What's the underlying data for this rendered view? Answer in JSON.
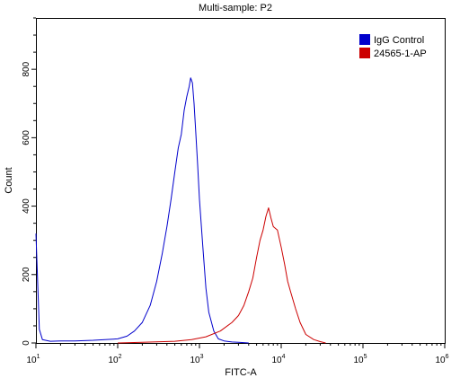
{
  "chart_data": {
    "type": "line",
    "title": "Multi-sample: P2",
    "xlabel": "FITC-A",
    "ylabel": "Count",
    "xscale": "log",
    "xlim": [
      10,
      1000000
    ],
    "ylim": [
      0,
      950
    ],
    "x_ticks": [
      {
        "base": "10",
        "exp": "1"
      },
      {
        "base": "10",
        "exp": "2"
      },
      {
        "base": "10",
        "exp": "3"
      },
      {
        "base": "10",
        "exp": "4"
      },
      {
        "base": "10",
        "exp": "5"
      },
      {
        "base": "10",
        "exp": "6"
      }
    ],
    "x_tick_values": [
      10,
      100,
      1000,
      10000,
      100000,
      1000000
    ],
    "y_ticks": [
      "0",
      "200",
      "400",
      "600",
      "800"
    ],
    "y_tick_values": [
      0,
      200,
      400,
      600,
      800
    ],
    "legend_position": "top-right",
    "series": [
      {
        "name": "IgG Control",
        "color": "#0000cc",
        "x": [
          10,
          11,
          12,
          15,
          20,
          30,
          50,
          70,
          100,
          130,
          160,
          200,
          250,
          300,
          350,
          400,
          450,
          500,
          550,
          600,
          650,
          700,
          750,
          780,
          820,
          860,
          900,
          950,
          1000,
          1100,
          1200,
          1300,
          1500,
          1700,
          2000,
          2500,
          3000,
          4000
        ],
        "y": [
          320,
          40,
          10,
          5,
          6,
          6,
          8,
          10,
          12,
          20,
          35,
          60,
          110,
          180,
          260,
          340,
          420,
          500,
          570,
          610,
          680,
          720,
          750,
          775,
          760,
          700,
          620,
          520,
          420,
          280,
          160,
          90,
          35,
          12,
          6,
          3,
          2,
          0
        ]
      },
      {
        "name": "24565-1-AP",
        "color": "#cc0000",
        "x": [
          100,
          200,
          500,
          800,
          1200,
          1800,
          2500,
          3000,
          3500,
          4000,
          4500,
          5000,
          5500,
          6000,
          6500,
          7000,
          7500,
          8000,
          9000,
          10000,
          11000,
          12000,
          13000,
          15000,
          17000,
          20000,
          25000,
          30000,
          35000
        ],
        "y": [
          0,
          2,
          5,
          10,
          18,
          35,
          60,
          80,
          110,
          150,
          190,
          250,
          300,
          330,
          370,
          395,
          365,
          340,
          330,
          280,
          230,
          180,
          150,
          100,
          60,
          25,
          10,
          4,
          0
        ]
      }
    ]
  }
}
